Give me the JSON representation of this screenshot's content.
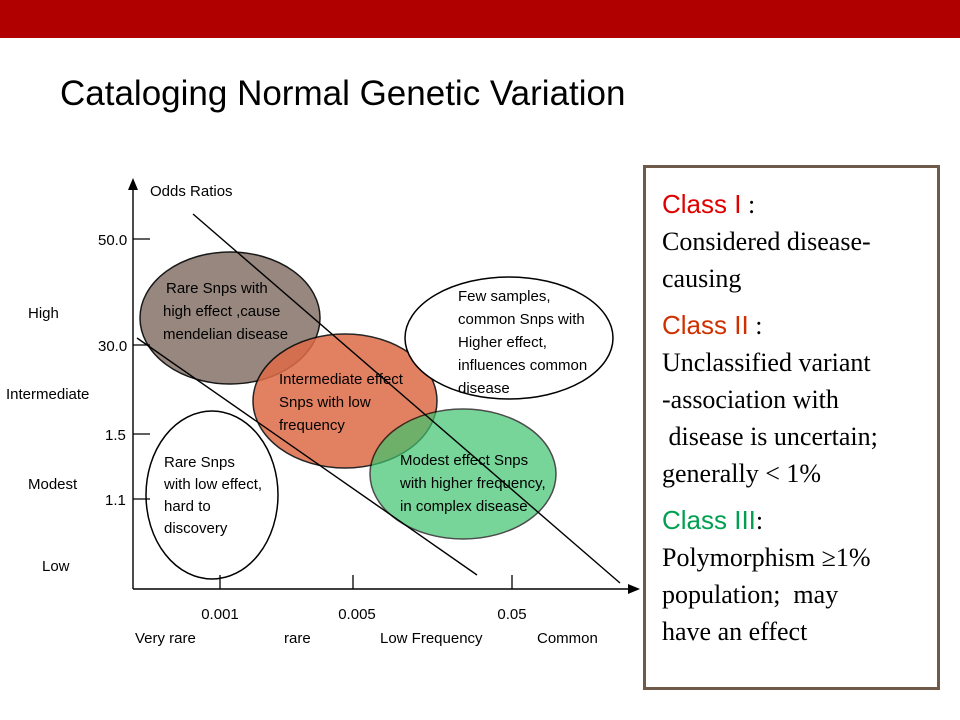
{
  "slide": {
    "title": "Cataloging Normal Genetic Variation",
    "colors": {
      "top_bar": "#b00000",
      "class1": "#e00000",
      "class2": "#d03000",
      "class3": "#00a050",
      "box_border": "#6e5a4a"
    }
  },
  "diagram": {
    "y_axis_title": "Odds Ratios",
    "y_ticks": [
      "50.0",
      "30.0",
      "1.5",
      "1.1"
    ],
    "y_bands": [
      "High",
      "Intermediate",
      "Modest",
      "Low"
    ],
    "x_ticks": [
      "0.001",
      "0.005",
      "0.05"
    ],
    "x_bands": [
      "Very rare",
      "rare",
      "Low Frequency",
      "Common"
    ],
    "ellipses": {
      "rare_high": {
        "lines": [
          "Rare Snps with",
          "high effect  ,cause",
          "mendelian disease"
        ],
        "fill": "#8c7b72"
      },
      "intermediate": {
        "lines": [
          "Intermediate effect",
          "Snps with low",
          "frequency"
        ],
        "fill": "#de6b47"
      },
      "modest": {
        "lines": [
          "Modest effect Snps",
          "with higher frequency,",
          "in complex disease"
        ],
        "fill": "#3ec46e"
      },
      "rare_low": {
        "lines": [
          "Rare Snps",
          "with low effect,",
          "hard to",
          "discovery"
        ],
        "fill": "#ffffff"
      },
      "few_samples": {
        "lines": [
          "Few samples,",
          "common Snps with",
          "Higher effect,",
          "influences common",
          "disease"
        ],
        "fill": "#ffffff"
      }
    }
  },
  "classes": [
    {
      "label": "Class I",
      "sep": " :",
      "lines": [
        "Considered disease-",
        "causing"
      ]
    },
    {
      "label": "Class II",
      "sep": " :",
      "lines": [
        "Unclassified variant",
        "-association with",
        " disease is uncertain;",
        "generally < 1%"
      ]
    },
    {
      "label": "Class III",
      "sep": ":",
      "lines": [
        "Polymorphism ≥1%",
        "population;  may",
        "have an effect"
      ]
    }
  ]
}
